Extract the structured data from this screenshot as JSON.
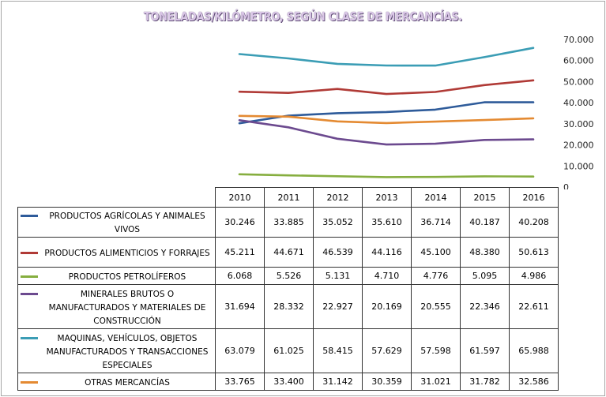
{
  "chart_data": {
    "type": "line",
    "title": "TONELADAS/KILÓMETRO, SEGÚN CLASE DE MERCANCÍAS.",
    "categories": [
      "2010",
      "2011",
      "2012",
      "2013",
      "2014",
      "2015",
      "2016"
    ],
    "ylim": [
      0,
      70000
    ],
    "yticks": [
      "0",
      "10.000",
      "20.000",
      "30.000",
      "40.000",
      "50.000",
      "60.000",
      "70.000"
    ],
    "ytick_values": [
      0,
      10000,
      20000,
      30000,
      40000,
      50000,
      60000,
      70000
    ],
    "grid": false,
    "legend": "data-table",
    "series": [
      {
        "name": "PRODUCTOS AGRÍCOLAS Y ANIMALES VIVOS",
        "color": "#2e5b9a",
        "values": [
          30246,
          33885,
          35052,
          35610,
          36714,
          40187,
          40208
        ],
        "labels": [
          "30.246",
          "33.885",
          "35.052",
          "35.610",
          "36.714",
          "40.187",
          "40.208"
        ]
      },
      {
        "name": "PRODUCTOS ALIMENTICIOS Y FORRAJES",
        "color": "#b03a36",
        "values": [
          45211,
          44671,
          46539,
          44116,
          45100,
          48380,
          50613
        ],
        "labels": [
          "45.211",
          "44.671",
          "46.539",
          "44.116",
          "45.100",
          "48.380",
          "50.613"
        ]
      },
      {
        "name": "PRODUCTOS PETROLÍFEROS",
        "color": "#86ae3f",
        "values": [
          6068,
          5526,
          5131,
          4710,
          4776,
          5095,
          4986
        ],
        "labels": [
          "6.068",
          "5.526",
          "5.131",
          "4.710",
          "4.776",
          "5.095",
          "4.986"
        ]
      },
      {
        "name": "MINERALES BRUTOS O MANUFACTURADOS Y MATERIALES DE CONSTRUCCIÓN",
        "color": "#6c4a8f",
        "values": [
          31694,
          28332,
          22927,
          20169,
          20555,
          22346,
          22611
        ],
        "labels": [
          "31.694",
          "28.332",
          "22.927",
          "20.169",
          "20.555",
          "22.346",
          "22.611"
        ]
      },
      {
        "name": "MAQUINAS, VEHÍCULOS, OBJETOS MANUFACTURADOS Y TRANSACCIONES ESPECIALES",
        "color": "#3b9db5",
        "values": [
          63079,
          61025,
          58415,
          57629,
          57598,
          61597,
          65988
        ],
        "labels": [
          "63.079",
          "61.025",
          "58.415",
          "57.629",
          "57.598",
          "61.597",
          "65.988"
        ]
      },
      {
        "name": "OTRAS MERCANCÍAS",
        "color": "#e48a32",
        "values": [
          33765,
          33400,
          31142,
          30359,
          31021,
          31782,
          32586
        ],
        "labels": [
          "33.765",
          "33.400",
          "31.142",
          "30.359",
          "31.021",
          "31.782",
          "32.586"
        ]
      }
    ]
  }
}
